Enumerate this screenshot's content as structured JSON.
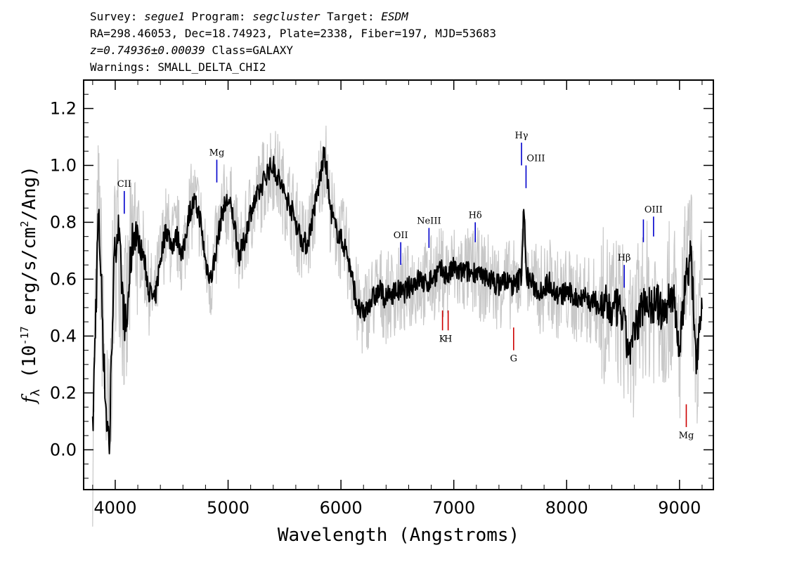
{
  "header": {
    "line1": {
      "survey_label": "Survey: ",
      "survey": "segue1",
      "program_label": " Program: ",
      "program": "segcluster",
      "target_label": " Target: ",
      "target": "ESDM"
    },
    "line2": "RA=298.46053, Dec=18.74923, Plate=2338, Fiber=197, MJD=53683",
    "line3": {
      "z": "z=0.74936±0.00039",
      "class": " Class=GALAXY"
    },
    "line4": "Warnings: SMALL_DELTA_CHI2"
  },
  "chart_data": {
    "type": "line",
    "xlabel": "Wavelength (Angstroms)",
    "ylabel": "f_λ (10^-17 erg/s/cm²/Ang)",
    "xlim": [
      3720,
      9300
    ],
    "ylim": [
      -0.14,
      1.3
    ],
    "x_ticks": [
      "4000",
      "5000",
      "6000",
      "7000",
      "8000",
      "9000"
    ],
    "y_ticks": [
      "0.0",
      "0.2",
      "0.4",
      "0.6",
      "0.8",
      "1.0",
      "1.2"
    ],
    "series": [
      {
        "style": "black smoothed flux",
        "points": [
          [
            3800,
            0.05
          ],
          [
            3825,
            0.45
          ],
          [
            3850,
            0.83
          ],
          [
            3875,
            0.62
          ],
          [
            3900,
            0.3
          ],
          [
            3925,
            0.1
          ],
          [
            3950,
            0.02
          ],
          [
            3975,
            0.48
          ],
          [
            4000,
            0.72
          ],
          [
            4025,
            0.78
          ],
          [
            4050,
            0.63
          ],
          [
            4075,
            0.48
          ],
          [
            4100,
            0.42
          ],
          [
            4125,
            0.6
          ],
          [
            4150,
            0.72
          ],
          [
            4175,
            0.78
          ],
          [
            4200,
            0.74
          ],
          [
            4250,
            0.68
          ],
          [
            4300,
            0.56
          ],
          [
            4350,
            0.52
          ],
          [
            4400,
            0.67
          ],
          [
            4450,
            0.78
          ],
          [
            4500,
            0.72
          ],
          [
            4550,
            0.75
          ],
          [
            4600,
            0.68
          ],
          [
            4650,
            0.83
          ],
          [
            4700,
            0.87
          ],
          [
            4750,
            0.82
          ],
          [
            4800,
            0.66
          ],
          [
            4850,
            0.6
          ],
          [
            4900,
            0.72
          ],
          [
            4950,
            0.84
          ],
          [
            5000,
            0.88
          ],
          [
            5050,
            0.81
          ],
          [
            5100,
            0.68
          ],
          [
            5150,
            0.74
          ],
          [
            5200,
            0.84
          ],
          [
            5250,
            0.88
          ],
          [
            5300,
            0.93
          ],
          [
            5350,
            0.98
          ],
          [
            5400,
            1.0
          ],
          [
            5450,
            0.95
          ],
          [
            5500,
            0.9
          ],
          [
            5550,
            0.86
          ],
          [
            5600,
            0.8
          ],
          [
            5650,
            0.74
          ],
          [
            5700,
            0.72
          ],
          [
            5750,
            0.82
          ],
          [
            5800,
            0.92
          ],
          [
            5850,
            1.04
          ],
          [
            5875,
            0.98
          ],
          [
            5900,
            0.86
          ],
          [
            5950,
            0.78
          ],
          [
            6000,
            0.74
          ],
          [
            6050,
            0.7
          ],
          [
            6100,
            0.6
          ],
          [
            6150,
            0.5
          ],
          [
            6200,
            0.47
          ],
          [
            6250,
            0.52
          ],
          [
            6300,
            0.54
          ],
          [
            6350,
            0.56
          ],
          [
            6400,
            0.53
          ],
          [
            6450,
            0.55
          ],
          [
            6500,
            0.56
          ],
          [
            6550,
            0.55
          ],
          [
            6600,
            0.57
          ],
          [
            6650,
            0.59
          ],
          [
            6700,
            0.6
          ],
          [
            6750,
            0.58
          ],
          [
            6800,
            0.6
          ],
          [
            6850,
            0.62
          ],
          [
            6900,
            0.63
          ],
          [
            6950,
            0.61
          ],
          [
            7000,
            0.64
          ],
          [
            7050,
            0.62
          ],
          [
            7100,
            0.63
          ],
          [
            7150,
            0.62
          ],
          [
            7200,
            0.63
          ],
          [
            7250,
            0.6
          ],
          [
            7300,
            0.61
          ],
          [
            7350,
            0.59
          ],
          [
            7400,
            0.58
          ],
          [
            7450,
            0.6
          ],
          [
            7500,
            0.58
          ],
          [
            7550,
            0.58
          ],
          [
            7600,
            0.62
          ],
          [
            7620,
            0.87
          ],
          [
            7640,
            0.62
          ],
          [
            7700,
            0.58
          ],
          [
            7750,
            0.56
          ],
          [
            7800,
            0.57
          ],
          [
            7850,
            0.59
          ],
          [
            7900,
            0.55
          ],
          [
            7950,
            0.54
          ],
          [
            8000,
            0.56
          ],
          [
            8050,
            0.54
          ],
          [
            8100,
            0.53
          ],
          [
            8150,
            0.55
          ],
          [
            8200,
            0.52
          ],
          [
            8250,
            0.52
          ],
          [
            8300,
            0.5
          ],
          [
            8350,
            0.51
          ],
          [
            8400,
            0.48
          ],
          [
            8450,
            0.5
          ],
          [
            8500,
            0.46
          ],
          [
            8550,
            0.34
          ],
          [
            8600,
            0.4
          ],
          [
            8650,
            0.48
          ],
          [
            8700,
            0.54
          ],
          [
            8750,
            0.5
          ],
          [
            8800,
            0.52
          ],
          [
            8850,
            0.47
          ],
          [
            8900,
            0.52
          ],
          [
            8950,
            0.55
          ],
          [
            9000,
            0.34
          ],
          [
            9050,
            0.6
          ],
          [
            9100,
            0.68
          ],
          [
            9150,
            0.32
          ],
          [
            9200,
            0.55
          ]
        ]
      }
    ],
    "line_markers": [
      {
        "label": "CII",
        "wavelength": 4080,
        "y_top": 0.91,
        "y_bottom": 0.83,
        "color": "#0000cc",
        "label_pos": "above"
      },
      {
        "label": "Mg",
        "wavelength": 4900,
        "y_top": 1.02,
        "y_bottom": 0.94,
        "color": "#0000cc",
        "label_pos": "above"
      },
      {
        "label": "OII",
        "wavelength": 6530,
        "y_top": 0.73,
        "y_bottom": 0.65,
        "color": "#0000cc",
        "label_pos": "above"
      },
      {
        "label": "NeIII",
        "wavelength": 6780,
        "y_top": 0.78,
        "y_bottom": 0.71,
        "color": "#0000cc",
        "label_pos": "above"
      },
      {
        "label": "Hδ",
        "wavelength": 7190,
        "y_top": 0.8,
        "y_bottom": 0.73,
        "color": "#0000cc",
        "label_pos": "above"
      },
      {
        "label": "Hγ",
        "wavelength": 7600,
        "y_top": 1.08,
        "y_bottom": 1.0,
        "color": "#0000cc",
        "label_pos": "above"
      },
      {
        "label": "OIII",
        "wavelength": 7640,
        "y_top": 1.0,
        "y_bottom": 0.92,
        "color": "#0000cc",
        "label_pos": "above-right"
      },
      {
        "label": "Hβ",
        "wavelength": 8510,
        "y_top": 0.65,
        "y_bottom": 0.57,
        "color": "#0000cc",
        "label_pos": "above"
      },
      {
        "label": "OIII",
        "wavelength": 8770,
        "y_top": 0.82,
        "y_bottom": 0.75,
        "color": "#0000cc",
        "label_pos": "above"
      },
      {
        "label": "",
        "wavelength": 8680,
        "y_top": 0.81,
        "y_bottom": 0.73,
        "color": "#0000cc",
        "label_pos": "none"
      },
      {
        "label": "K",
        "wavelength": 6900,
        "y_top": 0.49,
        "y_bottom": 0.42,
        "color": "#cc0000",
        "label_pos": "below"
      },
      {
        "label": "H",
        "wavelength": 6950,
        "y_top": 0.49,
        "y_bottom": 0.42,
        "color": "#cc0000",
        "label_pos": "below"
      },
      {
        "label": "G",
        "wavelength": 7530,
        "y_top": 0.43,
        "y_bottom": 0.35,
        "color": "#cc0000",
        "label_pos": "below"
      },
      {
        "label": "Mg",
        "wavelength": 9060,
        "y_top": 0.16,
        "y_bottom": 0.08,
        "color": "#cc0000",
        "label_pos": "below"
      }
    ]
  }
}
